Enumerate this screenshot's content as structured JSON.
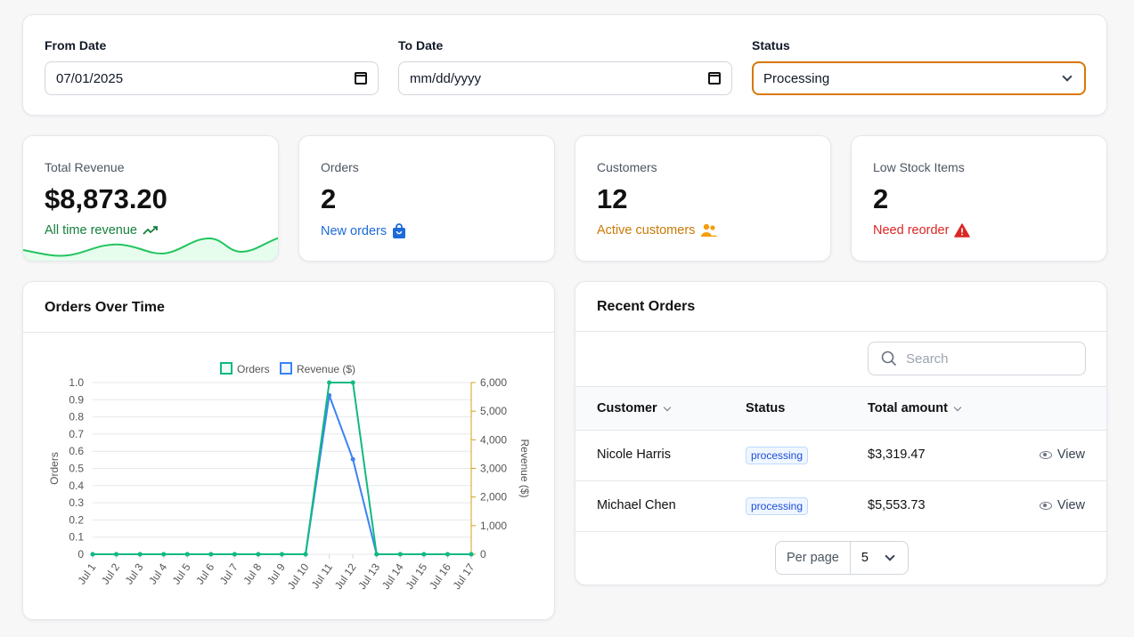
{
  "filters": {
    "from_label": "From Date",
    "from_value": "07/01/2025",
    "to_label": "To Date",
    "to_value": "mm/dd/yyyy",
    "status_label": "Status",
    "status_value": "Processing"
  },
  "stats": [
    {
      "title": "Total Revenue",
      "value": "$8,873.20",
      "sub": "All time revenue",
      "icon": "trending-up-icon",
      "color": "#15803d"
    },
    {
      "title": "Orders",
      "value": "2",
      "sub": "New orders",
      "icon": "shopping-bag-icon",
      "color": "#1d6ad8"
    },
    {
      "title": "Customers",
      "value": "12",
      "sub": "Active customers",
      "icon": "users-icon",
      "color": "#c97a06"
    },
    {
      "title": "Low Stock Items",
      "value": "2",
      "sub": "Need reorder",
      "icon": "warning-icon",
      "color": "#dc2626"
    }
  ],
  "orders_chart": {
    "title": "Orders Over Time"
  },
  "chart_data": {
    "type": "line",
    "categories": [
      "Jul 1",
      "Jul 2",
      "Jul 3",
      "Jul 4",
      "Jul 5",
      "Jul 6",
      "Jul 7",
      "Jul 8",
      "Jul 9",
      "Jul 10",
      "Jul 11",
      "Jul 12",
      "Jul 13",
      "Jul 14",
      "Jul 15",
      "Jul 16",
      "Jul 17"
    ],
    "series": [
      {
        "name": "Orders",
        "axis": "left",
        "color": "#10b981",
        "values": [
          0,
          0,
          0,
          0,
          0,
          0,
          0,
          0,
          0,
          0,
          1,
          1,
          0,
          0,
          0,
          0,
          0
        ]
      },
      {
        "name": "Revenue ($)",
        "axis": "right",
        "color": "#3b82f6",
        "values": [
          0,
          0,
          0,
          0,
          0,
          0,
          0,
          0,
          0,
          0,
          5553.73,
          3319.47,
          0,
          0,
          0,
          0,
          0
        ]
      }
    ],
    "ylabel": "Orders",
    "y2label": "Revenue ($)",
    "ylim": [
      0,
      1
    ],
    "y2lim": [
      0,
      6000
    ],
    "yticks": [
      "0",
      "0.1",
      "0.2",
      "0.3",
      "0.4",
      "0.5",
      "0.6",
      "0.7",
      "0.8",
      "0.9",
      "1.0"
    ],
    "y2ticks": [
      "0",
      "1,000",
      "2,000",
      "3,000",
      "4,000",
      "5,000",
      "6,000"
    ],
    "grid": true,
    "legend": "top-center"
  },
  "recent_orders": {
    "title": "Recent Orders",
    "search_placeholder": "Search",
    "columns": [
      "Customer",
      "Status",
      "Total amount"
    ],
    "rows": [
      {
        "customer": "Nicole Harris",
        "status": "processing",
        "total": "$3,319.47",
        "action": "View"
      },
      {
        "customer": "Michael Chen",
        "status": "processing",
        "total": "$5,553.73",
        "action": "View"
      }
    ],
    "per_page_label": "Per page",
    "per_page_value": "5"
  }
}
